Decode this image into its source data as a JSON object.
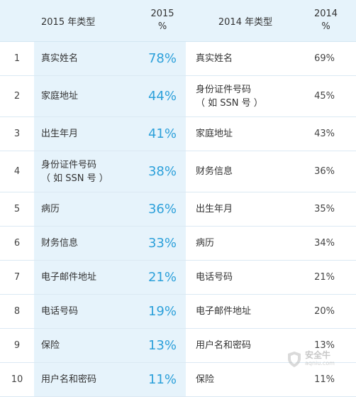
{
  "header": {
    "type_2015": "2015 年类型",
    "pct_2015_year": "2015",
    "pct_2015_unit": "%",
    "type_2014": "2014 年类型",
    "pct_2014_year": "2014",
    "pct_2014_unit": "%"
  },
  "rows": [
    {
      "rank": "1",
      "type_2015": [
        "真实姓名"
      ],
      "pct_2015": "78%",
      "type_2014": [
        "真实姓名"
      ],
      "pct_2014": "69%"
    },
    {
      "rank": "2",
      "type_2015": [
        "家庭地址"
      ],
      "pct_2015": "44%",
      "type_2014": [
        "身份证件号码",
        "（ 如 SSN 号 ）"
      ],
      "pct_2014": "45%"
    },
    {
      "rank": "3",
      "type_2015": [
        "出生年月"
      ],
      "pct_2015": "41%",
      "type_2014": [
        "家庭地址"
      ],
      "pct_2014": "43%"
    },
    {
      "rank": "4",
      "type_2015": [
        "身份证件号码",
        "（ 如 SSN 号 ）"
      ],
      "pct_2015": "38%",
      "type_2014": [
        "财务信息"
      ],
      "pct_2014": "36%"
    },
    {
      "rank": "5",
      "type_2015": [
        "病历"
      ],
      "pct_2015": "36%",
      "type_2014": [
        "出生年月"
      ],
      "pct_2014": "35%"
    },
    {
      "rank": "6",
      "type_2015": [
        "财务信息"
      ],
      "pct_2015": "33%",
      "type_2014": [
        "病历"
      ],
      "pct_2014": "34%"
    },
    {
      "rank": "7",
      "type_2015": [
        "电子邮件地址"
      ],
      "pct_2015": "21%",
      "type_2014": [
        "电话号码"
      ],
      "pct_2014": "21%"
    },
    {
      "rank": "8",
      "type_2015": [
        "电话号码"
      ],
      "pct_2015": "19%",
      "type_2014": [
        "电子邮件地址"
      ],
      "pct_2014": "20%"
    },
    {
      "rank": "9",
      "type_2015": [
        "保险"
      ],
      "pct_2015": "13%",
      "type_2014": [
        "用户名和密码"
      ],
      "pct_2014": "13%"
    },
    {
      "rank": "10",
      "type_2015": [
        "用户名和密码"
      ],
      "pct_2015": "11%",
      "type_2014": [
        "保险"
      ],
      "pct_2014": "11%"
    }
  ],
  "watermark": {
    "name_cn": "安全牛",
    "name_en": "aqniu.com",
    "icon": "shield-icon"
  },
  "colors": {
    "header_bg": "#e6f3fb",
    "highlight_bg": "#e6f3fb",
    "accent_pct": "#2ca0da",
    "text": "#333333"
  }
}
